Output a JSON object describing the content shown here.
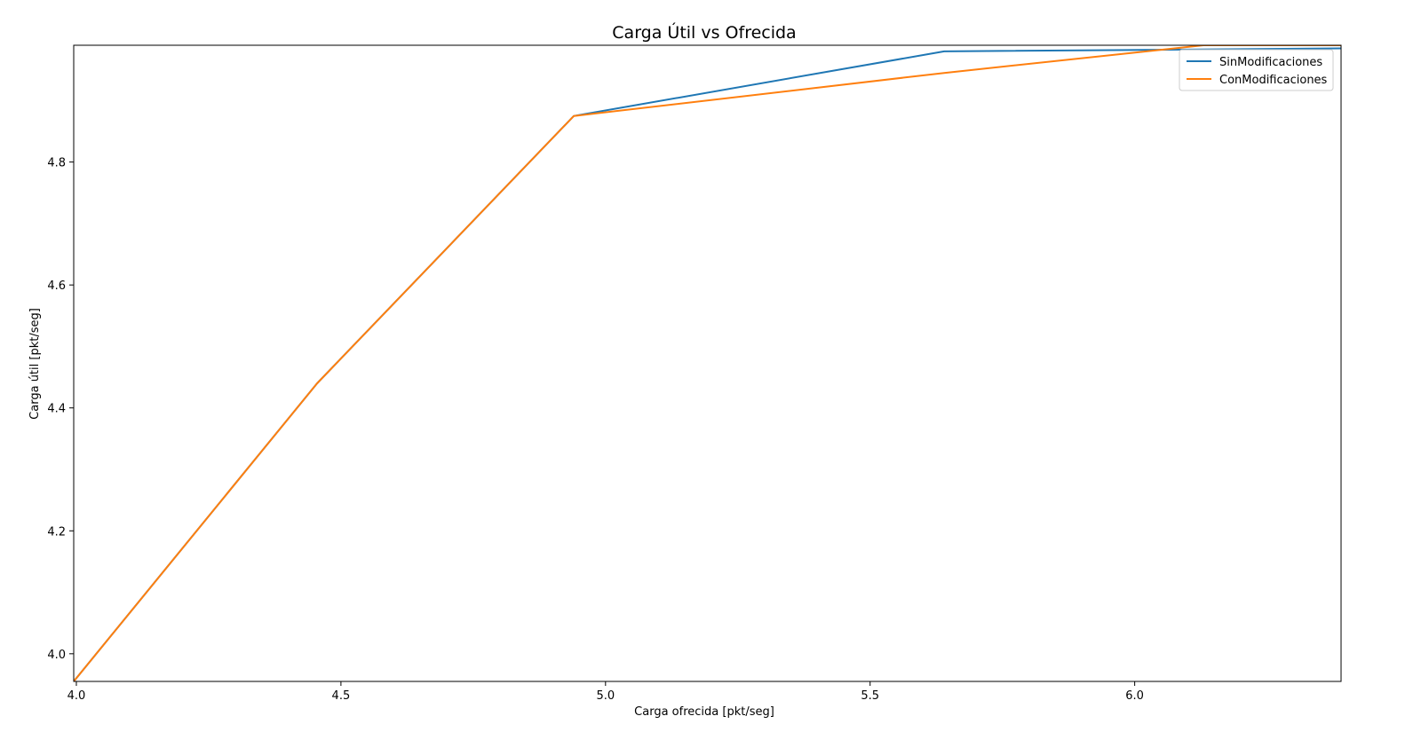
{
  "chart_data": {
    "type": "line",
    "title": "Carga Útil vs Ofrecida",
    "xlabel": "Carga ofrecida [pkt/seg]",
    "ylabel": "Carga útil [pkt/seg]",
    "xlim": [
      3.995,
      6.39
    ],
    "ylim": [
      3.955,
      4.99
    ],
    "xticks": [
      4.0,
      4.5,
      5.0,
      5.5,
      6.0
    ],
    "xtick_labels": [
      "4.0",
      "4.5",
      "5.0",
      "5.5",
      "6.0"
    ],
    "yticks": [
      4.0,
      4.2,
      4.4,
      4.6,
      4.8
    ],
    "ytick_labels": [
      "4.0",
      "4.2",
      "4.4",
      "4.6",
      "4.8"
    ],
    "grid": false,
    "legend_position": "top-right",
    "series": [
      {
        "name": "SinModificaciones",
        "color": "#1f77b4",
        "x": [
          3.995,
          4.455,
          4.94,
          5.64,
          6.39
        ],
        "y": [
          3.955,
          4.44,
          4.875,
          4.98,
          4.985
        ]
      },
      {
        "name": "ConModificaciones",
        "color": "#ff7f0e",
        "x": [
          3.995,
          4.455,
          4.94,
          5.64,
          6.13,
          6.39
        ],
        "y": [
          3.955,
          4.44,
          4.875,
          4.945,
          4.99,
          4.99
        ]
      }
    ]
  }
}
